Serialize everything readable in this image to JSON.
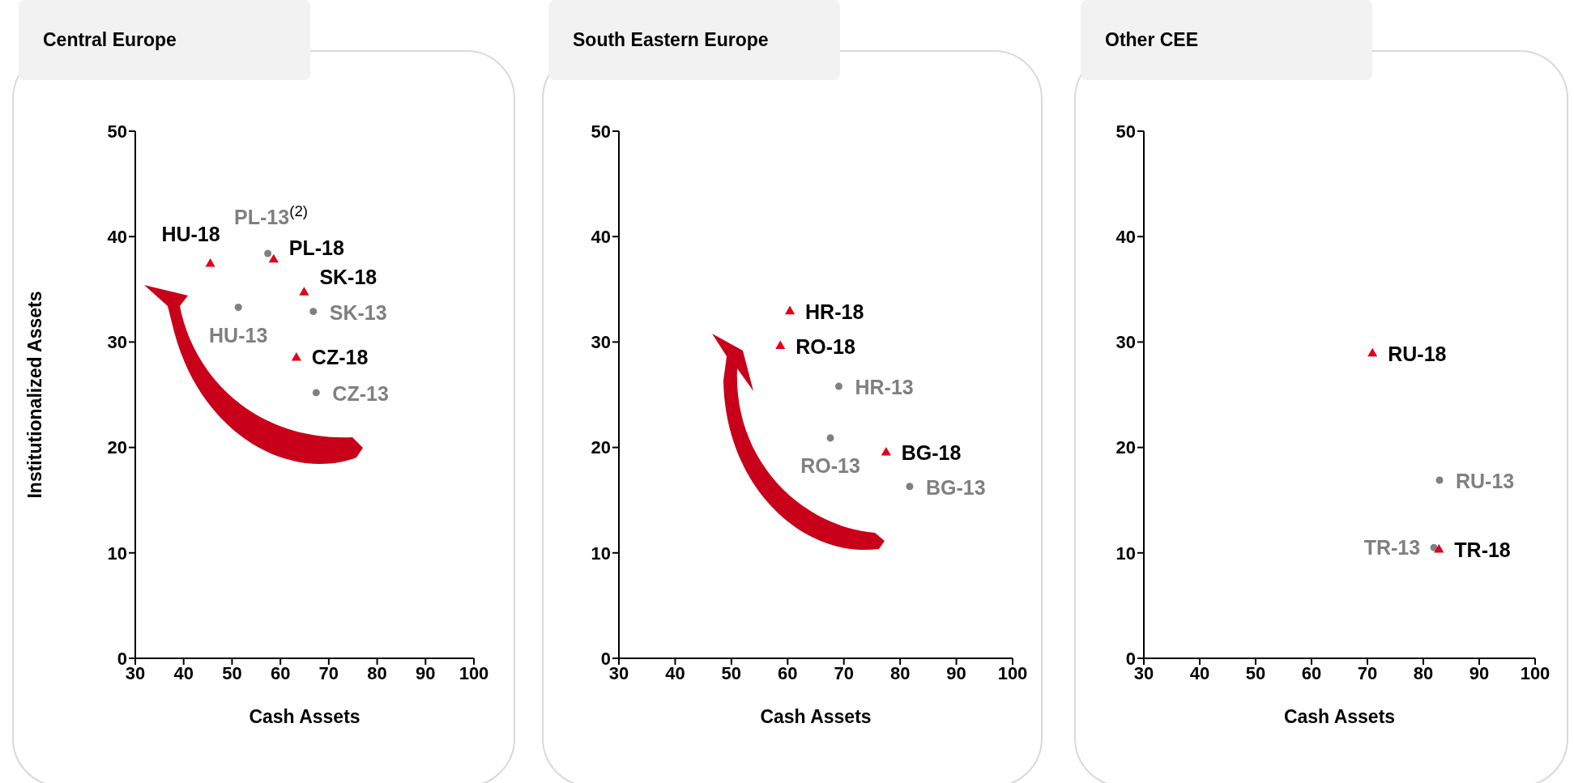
{
  "chart_data": [
    {
      "type": "scatter",
      "title": "Central Europe",
      "xlabel": "Cash Assets",
      "ylabel": "Institutionalized Assets",
      "xlim": [
        30,
        100
      ],
      "xticks": [
        30,
        40,
        50,
        60,
        70,
        80,
        90,
        100
      ],
      "ylim": [
        0,
        50
      ],
      "yticks": [
        0,
        10,
        20,
        30,
        40,
        50
      ],
      "grid": false,
      "legend": false,
      "series": [
        {
          "color": "#808080",
          "marker": "circle",
          "x": [
            57.4,
            51.3,
            66.8,
            67.4
          ],
          "values": [
            38.4,
            33.3,
            32.9,
            25.2
          ]
        },
        {
          "color": "#e2001a",
          "marker": "triangle",
          "x": [
            45.5,
            58.6,
            64.9,
            63.3
          ],
          "values": [
            37.4,
            37.8,
            34.7,
            28.5
          ]
        }
      ],
      "annotations": [
        {
          "text": "HU-18",
          "x": 45.5,
          "y": 37.4
        },
        {
          "text": "PL-13$^{(2)}$",
          "x": 57.4,
          "y": 38.4
        },
        {
          "text": "PL-18",
          "x": 58.6,
          "y": 37.8
        },
        {
          "text": "SK-18",
          "x": 64.9,
          "y": 34.7
        },
        {
          "text": "HU-13",
          "x": 51.3,
          "y": 33.3
        },
        {
          "text": "SK-13",
          "x": 66.8,
          "y": 32.9
        },
        {
          "text": "CZ-18",
          "x": 63.3,
          "y": 28.5
        },
        {
          "text": "CZ-13",
          "x": 67.4,
          "y": 25.2
        }
      ]
    },
    {
      "type": "scatter",
      "title": "South Eastern Europe",
      "xlabel": "Cash Assets",
      "xlim": [
        30,
        100
      ],
      "xticks": [
        30,
        40,
        50,
        60,
        70,
        80,
        90,
        100
      ],
      "ylim": [
        0,
        50
      ],
      "yticks": [
        0,
        10,
        20,
        30,
        40,
        50
      ],
      "grid": false,
      "legend": false,
      "series": [
        {
          "color": "#808080",
          "marker": "circle",
          "x": [
            69.1,
            67.6,
            81.7
          ],
          "values": [
            25.8,
            20.9,
            16.3
          ]
        },
        {
          "color": "#e2001a",
          "marker": "triangle",
          "x": [
            60.4,
            58.7,
            77.5
          ],
          "values": [
            32.9,
            29.6,
            19.5
          ]
        }
      ],
      "annotations": [
        {
          "text": "HR-18",
          "x": 60.4,
          "y": 32.9
        },
        {
          "text": "RO-18",
          "x": 58.7,
          "y": 29.6
        },
        {
          "text": "HR-13",
          "x": 69.1,
          "y": 25.8
        },
        {
          "text": "RO-13",
          "x": 67.6,
          "y": 20.9
        },
        {
          "text": "BG-18",
          "x": 77.5,
          "y": 19.5
        },
        {
          "text": "BG-13",
          "x": 81.7,
          "y": 16.3
        }
      ]
    },
    {
      "type": "scatter",
      "title": "Other CEE",
      "xlabel": "Cash Assets",
      "xlim": [
        30,
        100
      ],
      "xticks": [
        30,
        40,
        50,
        60,
        70,
        80,
        90,
        100
      ],
      "ylim": [
        0,
        50
      ],
      "yticks": [
        0,
        10,
        20,
        30,
        40,
        50
      ],
      "grid": false,
      "legend": false,
      "series": [
        {
          "color": "#808080",
          "marker": "circle",
          "x": [
            82.9,
            81.9
          ],
          "values": [
            16.9,
            10.5
          ]
        },
        {
          "color": "#e2001a",
          "marker": "triangle",
          "x": [
            70.9,
            82.8
          ],
          "values": [
            28.9,
            10.3
          ]
        }
      ],
      "annotations": [
        {
          "text": "RU-18",
          "x": 70.9,
          "y": 28.9
        },
        {
          "text": "RU-13",
          "x": 82.9,
          "y": 16.9
        },
        {
          "text": "TR-13",
          "x": 81.9,
          "y": 10.5
        },
        {
          "text": "TR-18",
          "x": 82.8,
          "y": 10.3
        }
      ]
    }
  ]
}
